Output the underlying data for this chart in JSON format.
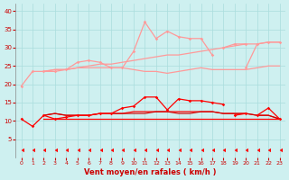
{
  "x": [
    0,
    1,
    2,
    3,
    4,
    5,
    6,
    7,
    8,
    9,
    10,
    11,
    12,
    13,
    14,
    15,
    16,
    17,
    18,
    19,
    20,
    21,
    22,
    23
  ],
  "line1": [
    19.5,
    23.5,
    23.5,
    23.5,
    24.0,
    26.0,
    26.5,
    26.0,
    24.5,
    24.5,
    29.0,
    37.0,
    32.5,
    34.5,
    33.0,
    32.5,
    32.5,
    28.0,
    null,
    null,
    24.5,
    31.0,
    31.5,
    31.5
  ],
  "line2": [
    null,
    null,
    null,
    null,
    null,
    null,
    null,
    null,
    null,
    null,
    null,
    null,
    null,
    null,
    null,
    null,
    null,
    null,
    30.0,
    31.0,
    31.0,
    null,
    null,
    null
  ],
  "line3": [
    null,
    null,
    23.5,
    24.0,
    24.0,
    24.5,
    25.0,
    25.5,
    25.5,
    26.0,
    26.5,
    27.0,
    27.5,
    28.0,
    28.0,
    28.5,
    29.0,
    29.5,
    30.0,
    30.5,
    31.0,
    31.0,
    31.5,
    31.5
  ],
  "line4": [
    null,
    null,
    23.5,
    24.0,
    24.0,
    24.5,
    24.5,
    24.5,
    24.5,
    24.5,
    24.0,
    23.5,
    23.5,
    23.0,
    23.5,
    24.0,
    24.5,
    24.0,
    24.0,
    24.0,
    24.0,
    24.5,
    25.0,
    25.0
  ],
  "line_red1": [
    10.5,
    8.5,
    11.5,
    10.5,
    11.0,
    11.5,
    11.5,
    12.0,
    12.0,
    13.5,
    14.0,
    16.5,
    16.5,
    13.0,
    16.0,
    15.5,
    15.5,
    15.0,
    14.5,
    null,
    null,
    11.5,
    13.5,
    10.5
  ],
  "line_red2": [
    null,
    null,
    null,
    null,
    null,
    null,
    null,
    null,
    null,
    null,
    null,
    null,
    null,
    null,
    null,
    null,
    null,
    null,
    null,
    11.5,
    12.0,
    null,
    null,
    null
  ],
  "line_red3": [
    10.5,
    null,
    11.5,
    12.0,
    11.5,
    11.5,
    11.5,
    12.0,
    12.0,
    12.0,
    12.5,
    12.5,
    12.5,
    12.5,
    12.5,
    12.5,
    12.5,
    12.5,
    12.0,
    12.0,
    12.0,
    11.5,
    11.5,
    10.5
  ],
  "line_red4": [
    10.5,
    null,
    10.5,
    10.5,
    10.5,
    10.5,
    10.5,
    10.5,
    10.5,
    10.5,
    10.5,
    10.5,
    10.5,
    10.5,
    10.5,
    10.5,
    10.5,
    10.5,
    10.5,
    10.5,
    10.5,
    10.5,
    10.5,
    10.5
  ],
  "line_darkred": [
    10.5,
    null,
    11.5,
    12.0,
    11.5,
    11.5,
    11.5,
    12.0,
    12.0,
    12.0,
    12.0,
    12.0,
    12.5,
    12.5,
    12.0,
    12.0,
    12.5,
    12.5,
    12.0,
    12.0,
    12.0,
    11.5,
    11.5,
    10.5
  ],
  "line_arrows": [
    2.0,
    2.0,
    2.0,
    2.0,
    2.0,
    2.0,
    2.0,
    2.0,
    2.0,
    2.0,
    2.0,
    2.0,
    2.0,
    2.0,
    2.0,
    2.0,
    2.0,
    2.0,
    2.0,
    2.0,
    2.0,
    2.0,
    2.0,
    2.0
  ],
  "bg_color": "#cef0f0",
  "grid_color": "#aadddd",
  "salmon_color": "#ff9999",
  "red_color": "#ff0000",
  "dark_red_color": "#cc0000",
  "xlabel": "Vent moyen/en rafales ( km/h )",
  "ylim": [
    0,
    42
  ],
  "xlim": [
    -0.5,
    23.5
  ],
  "yticks": [
    5,
    10,
    15,
    20,
    25,
    30,
    35,
    40
  ],
  "xticks": [
    0,
    1,
    2,
    3,
    4,
    5,
    6,
    7,
    8,
    9,
    10,
    11,
    12,
    13,
    14,
    15,
    16,
    17,
    18,
    19,
    20,
    21,
    22,
    23
  ]
}
